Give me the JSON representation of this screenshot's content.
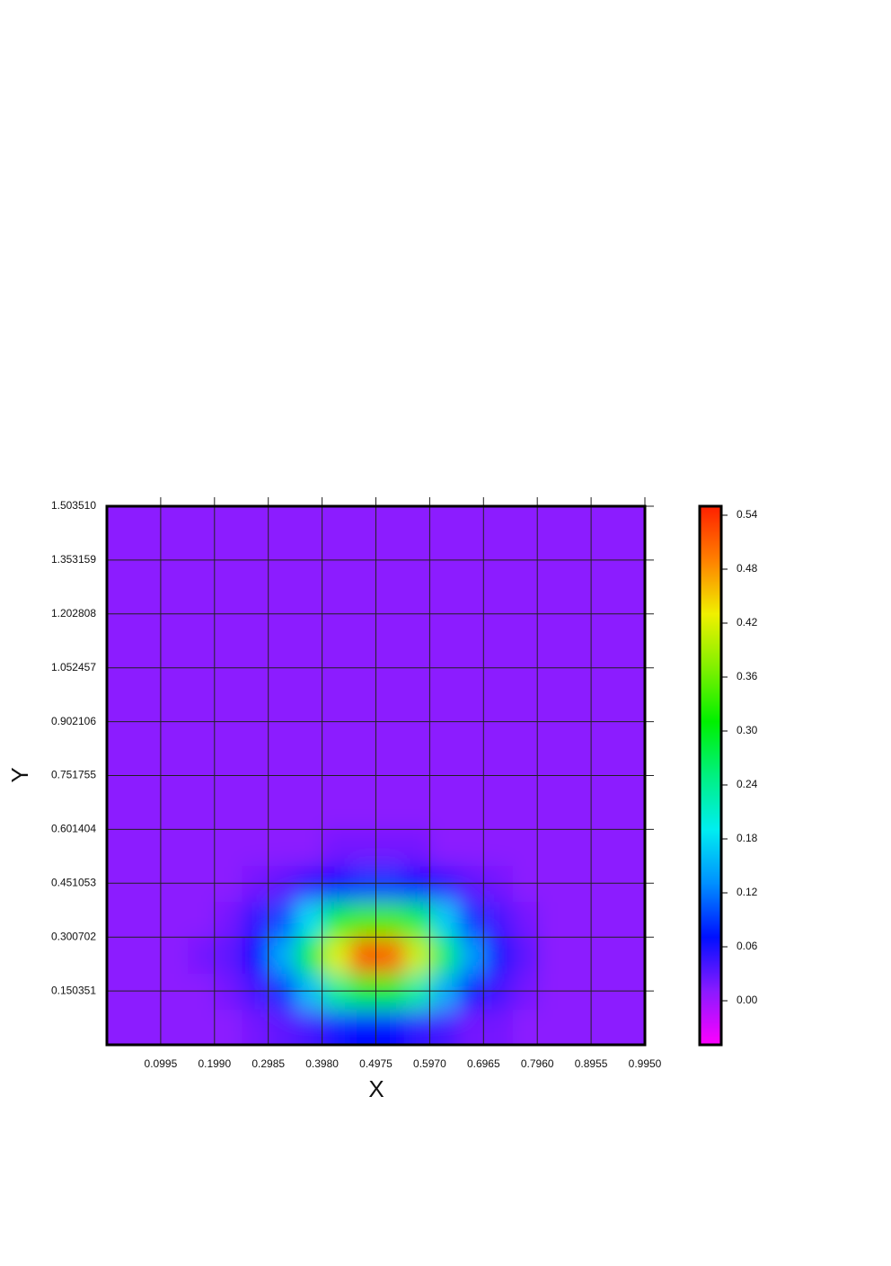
{
  "chart_data": {
    "type": "heatmap",
    "x_label": "X",
    "y_label": "Y",
    "xlim": [
      0,
      0.995
    ],
    "ylim": [
      0,
      1.50351
    ],
    "xticks": [
      0.0995,
      {
        "value": 0.199,
        "label": "0.1990"
      },
      0.2985,
      {
        "value": 0.398,
        "label": "0.3980"
      },
      0.4975,
      {
        "value": 0.597,
        "label": "0.5970"
      },
      0.6965,
      {
        "value": 0.796,
        "label": "0.7960"
      },
      0.8955,
      {
        "value": 0.995,
        "label": "0.9950"
      }
    ],
    "yticks": [
      0.150351,
      0.300702,
      0.451053,
      0.601404,
      0.751755,
      0.902106,
      1.052457,
      1.202808,
      1.353159,
      {
        "value": 1.50351,
        "label": "1.503510"
      }
    ],
    "grid": true,
    "clim": [
      -0.049,
      0.55
    ],
    "cticks": [
      {
        "value": 0,
        "label": "0.00"
      },
      0.06,
      0.12,
      0.18,
      0.24,
      {
        "value": 0.3,
        "label": "0.30"
      },
      0.36,
      0.42,
      0.48,
      0.54
    ],
    "colormap": [
      "#ff00ff",
      "#8a1aff",
      "#0010ff",
      "#0090ff",
      "#00eef0",
      "#00f080",
      "#00f000",
      "#80f000",
      "#f0f000",
      "#ff8000",
      "#ff2000"
    ],
    "x": [
      0.025,
      0.075,
      0.125,
      0.175,
      0.225,
      0.275,
      0.325,
      0.375,
      0.425,
      0.475,
      0.525,
      0.575,
      0.625,
      0.675,
      0.725,
      0.775,
      0.825,
      0.875,
      0.925,
      0.975
    ],
    "y": [
      0.05,
      0.15,
      0.25,
      0.35,
      0.45,
      0.55,
      0.65,
      0.75,
      0.85,
      0.95,
      1.05,
      1.15,
      1.25,
      1.35,
      1.45
    ],
    "z": [
      [
        0.01,
        0.01,
        0.01,
        0.01,
        0.01,
        0.02,
        0.03,
        0.04,
        0.06,
        0.07,
        0.07,
        0.05,
        0.04,
        0.02,
        0.02,
        0.01,
        0.01,
        0.01,
        0.01,
        0.01
      ],
      [
        0.01,
        0.01,
        0.01,
        0.01,
        0.02,
        0.04,
        0.09,
        0.16,
        0.24,
        0.29,
        0.29,
        0.23,
        0.15,
        0.08,
        0.04,
        0.02,
        0.01,
        0.01,
        0.01,
        0.01
      ],
      [
        0.01,
        0.01,
        0.01,
        0.02,
        0.03,
        0.07,
        0.15,
        0.28,
        0.42,
        0.52,
        0.51,
        0.41,
        0.26,
        0.14,
        0.06,
        0.03,
        0.01,
        0.01,
        0.01,
        0.01
      ],
      [
        0.01,
        0.01,
        0.01,
        0.01,
        0.02,
        0.05,
        0.1,
        0.18,
        0.28,
        0.34,
        0.34,
        0.27,
        0.17,
        0.09,
        0.04,
        0.02,
        0.01,
        0.01,
        0.01,
        0.01
      ],
      [
        0.01,
        0.01,
        0.01,
        0.01,
        0.01,
        0.02,
        0.03,
        0.05,
        0.07,
        0.09,
        0.09,
        0.07,
        0.05,
        0.03,
        0.02,
        0.01,
        0.01,
        0.01,
        0.01,
        0.01
      ],
      [
        0.01,
        0.01,
        0.01,
        0.01,
        0.01,
        0.01,
        0.01,
        0.01,
        0.02,
        0.02,
        0.02,
        0.02,
        0.01,
        0.01,
        0.01,
        0.01,
        0.01,
        0.01,
        0.01,
        0.01
      ],
      [
        0.01,
        0.01,
        0.01,
        0.01,
        0.01,
        0.01,
        0.01,
        0.01,
        0.01,
        0.01,
        0.01,
        0.01,
        0.01,
        0.01,
        0.01,
        0.01,
        0.01,
        0.01,
        0.01,
        0.01
      ],
      [
        0.01,
        0.01,
        0.01,
        0.01,
        0.01,
        0.01,
        0.01,
        0.01,
        0.01,
        0.01,
        0.01,
        0.01,
        0.01,
        0.01,
        0.01,
        0.01,
        0.01,
        0.01,
        0.01,
        0.01
      ],
      [
        0.01,
        0.01,
        0.01,
        0.01,
        0.01,
        0.01,
        0.01,
        0.01,
        0.01,
        0.01,
        0.01,
        0.01,
        0.01,
        0.01,
        0.01,
        0.01,
        0.01,
        0.01,
        0.01,
        0.01
      ],
      [
        0.01,
        0.01,
        0.01,
        0.01,
        0.01,
        0.01,
        0.01,
        0.01,
        0.01,
        0.01,
        0.01,
        0.01,
        0.01,
        0.01,
        0.01,
        0.01,
        0.01,
        0.01,
        0.01,
        0.01
      ],
      [
        0.01,
        0.01,
        0.01,
        0.01,
        0.01,
        0.01,
        0.01,
        0.01,
        0.01,
        0.01,
        0.01,
        0.01,
        0.01,
        0.01,
        0.01,
        0.01,
        0.01,
        0.01,
        0.01,
        0.01
      ],
      [
        0.01,
        0.01,
        0.01,
        0.01,
        0.01,
        0.01,
        0.01,
        0.01,
        0.01,
        0.01,
        0.01,
        0.01,
        0.01,
        0.01,
        0.01,
        0.01,
        0.01,
        0.01,
        0.01,
        0.01
      ],
      [
        0.01,
        0.01,
        0.01,
        0.01,
        0.01,
        0.01,
        0.01,
        0.01,
        0.01,
        0.01,
        0.01,
        0.01,
        0.01,
        0.01,
        0.01,
        0.01,
        0.01,
        0.01,
        0.01,
        0.01
      ],
      [
        0.01,
        0.01,
        0.01,
        0.01,
        0.01,
        0.01,
        0.01,
        0.01,
        0.01,
        0.01,
        0.01,
        0.01,
        0.01,
        0.01,
        0.01,
        0.01,
        0.01,
        0.01,
        0.01,
        0.01
      ],
      [
        0.01,
        0.01,
        0.01,
        0.01,
        0.01,
        0.01,
        0.01,
        0.01,
        0.01,
        0.01,
        0.01,
        0.01,
        0.01,
        0.01,
        0.01,
        0.01,
        0.01,
        0.01,
        0.01,
        0.01
      ]
    ]
  }
}
